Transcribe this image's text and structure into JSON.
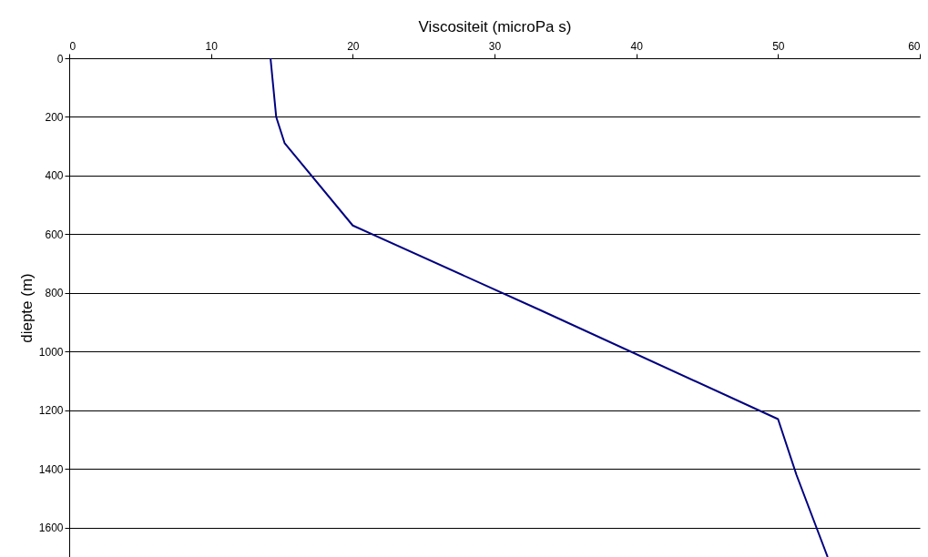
{
  "chart_data": {
    "type": "line",
    "xlabel": "Viscositeit (microPa s)",
    "ylabel": "diepte (m)",
    "x": [
      14.2,
      14.6,
      15.2,
      20.0,
      33.3,
      50.0,
      51.3,
      53.5
    ],
    "series": [
      {
        "color": "#000080",
        "values": [
          0,
          200,
          290,
          570,
          860,
          1230,
          1420,
          1700
        ]
      }
    ],
    "xlim": [
      0,
      60
    ],
    "xticks": [
      0,
      10,
      20,
      30,
      40,
      50,
      60
    ],
    "ylim": [
      1700,
      0
    ],
    "yticks": [
      0,
      200,
      400,
      600,
      800,
      1000,
      1200,
      1400,
      1600
    ],
    "grid": "y",
    "marker": "none",
    "line_style": "solid"
  }
}
